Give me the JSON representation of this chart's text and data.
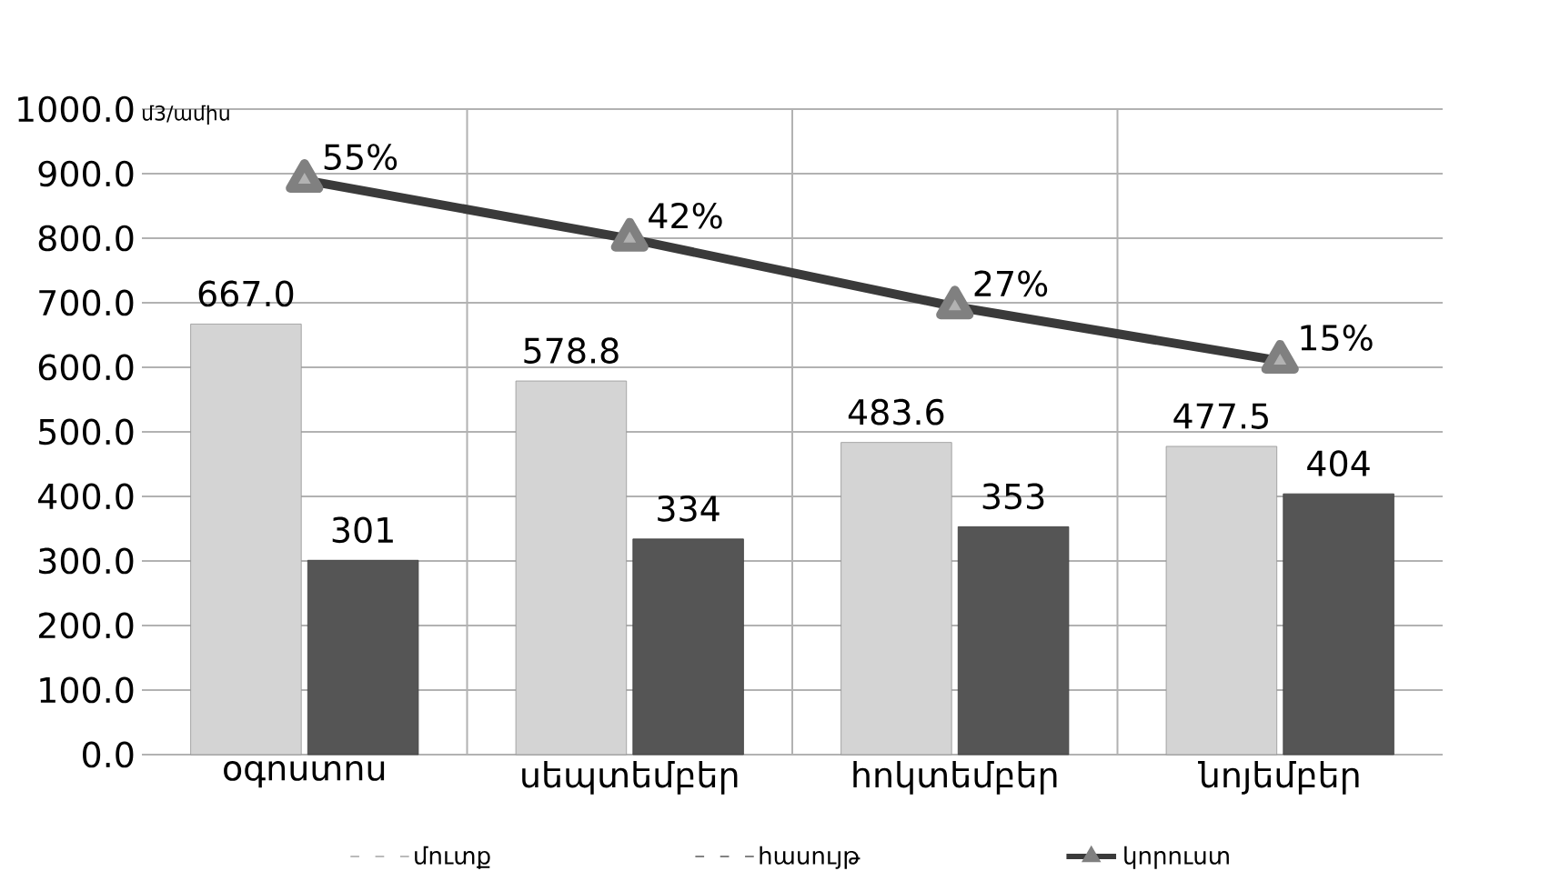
{
  "chart_data": {
    "type": "bar",
    "ylabel": "մ3/ամիս",
    "categories": [
      "օգոստոս",
      "սեպտեմբեր",
      "հոկտեմբեր",
      "նոյեմբեր"
    ],
    "series": [
      {
        "name": "մուտք",
        "color": "#d4d4d4",
        "values": [
          667.0,
          578.8,
          483.6,
          477.5
        ],
        "value_labels": [
          "667.0",
          "578.8",
          "483.6",
          "477.5"
        ]
      },
      {
        "name": "հասույթ",
        "color": "#555555",
        "values": [
          301,
          334,
          353,
          404
        ],
        "value_labels": [
          "301",
          "334",
          "353",
          "404"
        ]
      },
      {
        "name": "կորուստ",
        "type": "line",
        "axis": "y2",
        "color": "#3a3a3a",
        "marker": "triangle",
        "line_style": "solid",
        "values": [
          55,
          42,
          27,
          15
        ],
        "value_labels": [
          "55%",
          "42%",
          "27%",
          "15%"
        ]
      }
    ],
    "ylim": [
      0,
      1000
    ],
    "yticks": [
      {
        "value": 0,
        "label": "0.0"
      },
      {
        "value": 100,
        "label": "100.0"
      },
      {
        "value": 200,
        "label": "200.0"
      },
      {
        "value": 300,
        "label": "300.0"
      },
      {
        "value": 400,
        "label": "400.0"
      },
      {
        "value": 500,
        "label": "500.0"
      },
      {
        "value": 600,
        "label": "600.0"
      },
      {
        "value": 700,
        "label": "700.0"
      },
      {
        "value": 800,
        "label": "800.0"
      },
      {
        "value": 900,
        "label": "900.0"
      },
      {
        "value": 1000,
        "label": "1000.0"
      }
    ],
    "y2lim": [
      -72.1,
      70.7
    ],
    "grid": true,
    "legend": "bottom"
  }
}
